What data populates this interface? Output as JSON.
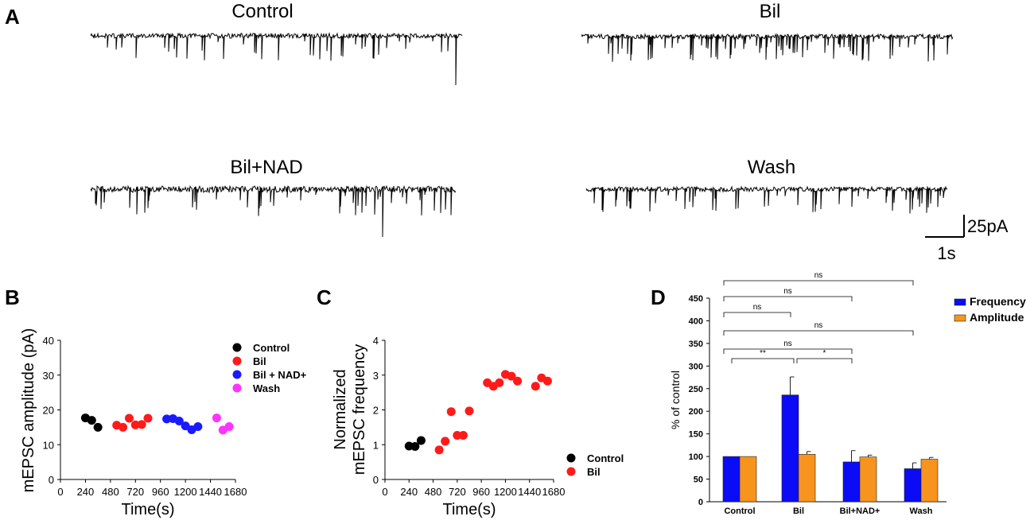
{
  "panels": {
    "a": {
      "letter": "A",
      "traces": [
        {
          "title": "Control",
          "events": 40,
          "noise": 3,
          "amp": 28,
          "seed": 11,
          "bigSpike": 62
        },
        {
          "title": "Bil",
          "events": 85,
          "noise": 3,
          "amp": 26,
          "seed": 23,
          "bigSpike": 0
        },
        {
          "title": "Bil+NAD",
          "events": 50,
          "noise": 4,
          "amp": 28,
          "seed": 37,
          "bigSpike": 60
        },
        {
          "title": "Wash",
          "events": 55,
          "noise": 3,
          "amp": 26,
          "seed": 51,
          "bigSpike": 0
        }
      ],
      "scale_bar": {
        "current": "25pA",
        "time": "1s"
      }
    },
    "b": {
      "letter": "B"
    },
    "c": {
      "letter": "C"
    },
    "d": {
      "letter": "D"
    }
  },
  "chart_data": [
    {
      "type": "scatter",
      "panel": "B",
      "title": "",
      "xlabel": "Time(s)",
      "ylabel": "mEPSC amplitude (pA)",
      "xlim": [
        0,
        1680
      ],
      "ylim": [
        0,
        40
      ],
      "xticks": [
        0,
        240,
        480,
        720,
        960,
        1200,
        1440,
        1680
      ],
      "yticks": [
        0,
        10,
        20,
        30,
        40
      ],
      "legend_position": "top-right",
      "series": [
        {
          "name": "Control",
          "color": "#000000",
          "points": [
            [
              240,
              17.7
            ],
            [
              300,
              17.0
            ],
            [
              360,
              15.0
            ]
          ]
        },
        {
          "name": "Bil",
          "color": "#ff1a1a",
          "points": [
            [
              540,
              15.6
            ],
            [
              600,
              15.0
            ],
            [
              660,
              17.6
            ],
            [
              720,
              15.7
            ],
            [
              780,
              15.8
            ],
            [
              840,
              17.6
            ]
          ]
        },
        {
          "name": "Bil + NAD+",
          "color": "#1a1aff",
          "points": [
            [
              1020,
              17.4
            ],
            [
              1080,
              17.5
            ],
            [
              1140,
              16.8
            ],
            [
              1200,
              15.4
            ],
            [
              1260,
              14.3
            ],
            [
              1320,
              15.2
            ]
          ]
        },
        {
          "name": "Wash",
          "color": "#ff33ff",
          "points": [
            [
              1500,
              17.7
            ],
            [
              1560,
              14.2
            ],
            [
              1620,
              15.2
            ]
          ]
        }
      ]
    },
    {
      "type": "scatter",
      "panel": "C",
      "title": "",
      "xlabel": "Time(s)",
      "ylabel": "Normalized mEPSC frequency",
      "ylabel_lines": [
        "Normalized",
        "mEPSC frequency"
      ],
      "xlim": [
        0,
        1680
      ],
      "ylim": [
        0,
        4
      ],
      "xticks": [
        0,
        240,
        480,
        720,
        960,
        1200,
        1440,
        1680
      ],
      "yticks": [
        0,
        1,
        2,
        3,
        4
      ],
      "legend_position": "bottom-right",
      "series": [
        {
          "name": "Control",
          "color": "#000000",
          "points": [
            [
              240,
              0.96
            ],
            [
              300,
              0.95
            ],
            [
              360,
              1.12
            ]
          ]
        },
        {
          "name": "Bil",
          "color": "#ff1a1a",
          "points": [
            [
              540,
              0.85
            ],
            [
              600,
              1.1
            ],
            [
              660,
              1.95
            ],
            [
              720,
              1.27
            ],
            [
              780,
              1.27
            ],
            [
              840,
              1.97
            ],
            [
              1020,
              2.78
            ],
            [
              1080,
              2.68
            ],
            [
              1140,
              2.78
            ],
            [
              1200,
              3.02
            ],
            [
              1260,
              2.97
            ],
            [
              1320,
              2.83
            ],
            [
              1500,
              2.68
            ],
            [
              1560,
              2.92
            ],
            [
              1620,
              2.83
            ]
          ]
        }
      ]
    },
    {
      "type": "bar",
      "panel": "D",
      "title": "",
      "xlabel": "",
      "ylabel": "% of control",
      "ylim": [
        0,
        450
      ],
      "yticks": [
        0,
        50,
        100,
        150,
        200,
        250,
        300,
        350,
        400,
        450
      ],
      "categories": [
        "Control",
        "Bil",
        "Bil+NAD+",
        "Wash"
      ],
      "legend_position": "top-right",
      "series": [
        {
          "name": "Frequency",
          "color": "#0b0bf5",
          "values": [
            100,
            236,
            88,
            73
          ],
          "errors": [
            0,
            40,
            25,
            13
          ]
        },
        {
          "name": "Amplitude",
          "color": "#f7941d",
          "values": [
            100,
            105,
            99,
            94
          ],
          "errors": [
            0,
            6,
            4,
            4
          ]
        }
      ],
      "significance": [
        {
          "label": "ns",
          "from": "Control",
          "to": "Wash",
          "level": 5
        },
        {
          "label": "ns",
          "from": "Control",
          "to": "Bil+NAD+",
          "level": 4
        },
        {
          "label": "ns",
          "from": "Control",
          "to": "Bil",
          "level": 3
        },
        {
          "label": "ns",
          "from": "Control",
          "to": "Wash",
          "level": 2
        },
        {
          "label": "ns",
          "from": "Control",
          "to": "Bil+NAD+",
          "level": 1
        },
        {
          "label": "**",
          "from": "Control",
          "to": "Bil",
          "level": 0
        },
        {
          "label": "*",
          "from": "Bil",
          "to": "Bil+NAD+",
          "level": 0
        }
      ]
    }
  ]
}
